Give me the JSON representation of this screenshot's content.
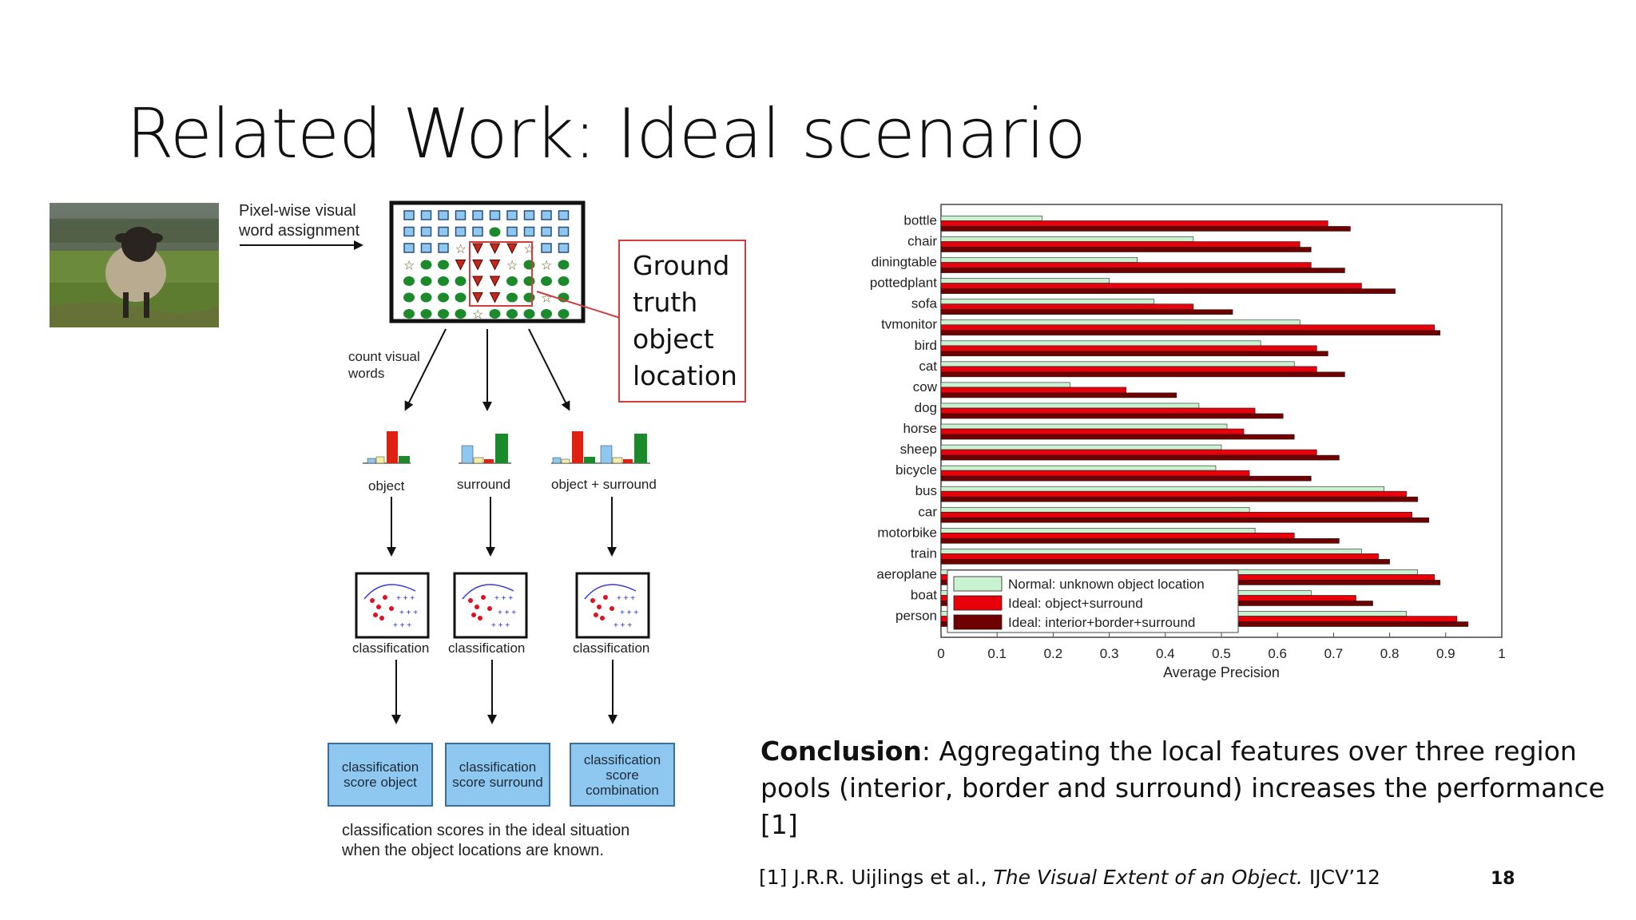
{
  "slide": {
    "title": "Related Work: Ideal scenario",
    "page_number": "18"
  },
  "diagram": {
    "pixel_label": "Pixel-wise visual word assignment",
    "pixel_label_lines": [
      "Pixel-wise visual",
      "word assignment"
    ],
    "count_label_lines": [
      "count visual",
      "words"
    ],
    "ground_truth_lines": [
      "Ground",
      "truth",
      "object",
      "location"
    ],
    "hist_labels": [
      "object",
      "surround",
      "object + surround"
    ],
    "classification_label": "classification",
    "score_object_lines": [
      "classification",
      "score object"
    ],
    "score_surround_lines": [
      "classification",
      "score surround"
    ],
    "score_combination_lines": [
      "classification",
      "score",
      "combination"
    ],
    "caption_lines": [
      "classification scores in the ideal situation",
      "when the object locations are known."
    ]
  },
  "conclusion": {
    "bold": "Conclusion",
    "text": ": Aggregating the local features over three region pools (interior, border and surround) increases the performance [1]"
  },
  "reference": {
    "prefix": "[1] J.R.R. Uijlings et al., ",
    "title": "The Visual Extent of an Object.",
    "suffix": " IJCV’12"
  },
  "chart_data": {
    "type": "bar",
    "orientation": "horizontal",
    "categories": [
      "bottle",
      "chair",
      "diningtable",
      "pottedplant",
      "sofa",
      "tvmonitor",
      "bird",
      "cat",
      "cow",
      "dog",
      "horse",
      "sheep",
      "bicycle",
      "bus",
      "car",
      "motorbike",
      "train",
      "aeroplane",
      "boat",
      "person"
    ],
    "series": [
      {
        "name": "Normal: unknown object location",
        "color": "#c9f2d0",
        "values": [
          0.18,
          0.45,
          0.35,
          0.3,
          0.38,
          0.64,
          0.57,
          0.63,
          0.23,
          0.46,
          0.51,
          0.5,
          0.49,
          0.79,
          0.55,
          0.56,
          0.75,
          0.85,
          0.66,
          0.83
        ]
      },
      {
        "name": "Ideal: object+surround",
        "color": "#e8000b",
        "values": [
          0.69,
          0.64,
          0.66,
          0.75,
          0.45,
          0.88,
          0.67,
          0.67,
          0.33,
          0.56,
          0.54,
          0.67,
          0.55,
          0.83,
          0.84,
          0.63,
          0.78,
          0.88,
          0.74,
          0.92
        ]
      },
      {
        "name": "Ideal: interior+border+surround",
        "color": "#6e0000",
        "values": [
          0.73,
          0.66,
          0.72,
          0.81,
          0.52,
          0.89,
          0.69,
          0.72,
          0.42,
          0.61,
          0.63,
          0.71,
          0.66,
          0.85,
          0.87,
          0.71,
          0.8,
          0.89,
          0.77,
          0.94
        ]
      }
    ],
    "xlabel": "Average Precision",
    "xlim": [
      0,
      1
    ],
    "xticks": [
      "0",
      "0.1",
      "0.2",
      "0.3",
      "0.4",
      "0.5",
      "0.6",
      "0.7",
      "0.8",
      "0.9",
      "1"
    ],
    "legend_position": "bottom-left",
    "grid": false
  }
}
